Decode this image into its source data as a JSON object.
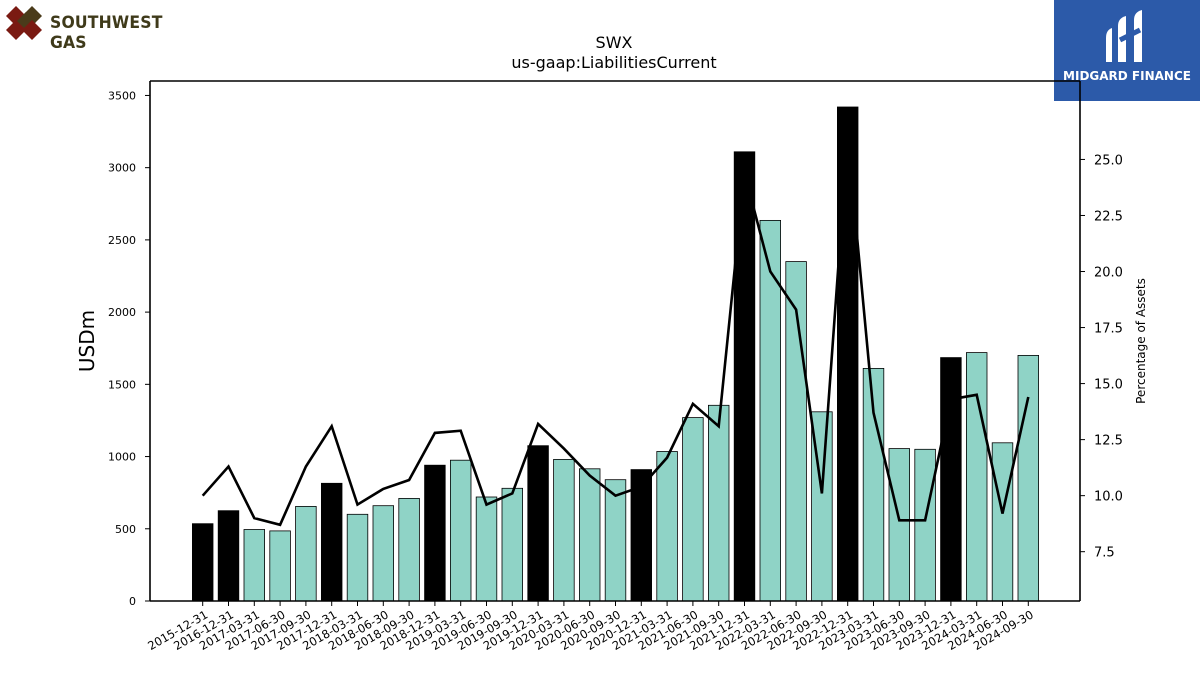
{
  "header": {
    "left_logo_text": "SOUTHWEST GAS",
    "right_logo_text": "MIDGARD FINANCE"
  },
  "chart_data": {
    "type": "bar",
    "title": "SWX",
    "subtitle": "us-gaap:LiabilitiesCurrent",
    "ylabel": "USDm",
    "y2label": "Percentage of Assets",
    "ylim": [
      0,
      3600
    ],
    "y2lim": [
      5.3,
      28.5
    ],
    "yticks": [
      0,
      500,
      1000,
      1500,
      2000,
      2500,
      3000,
      3500
    ],
    "y2ticks": [
      7.5,
      10.0,
      12.5,
      15.0,
      17.5,
      20.0,
      22.5,
      25.0
    ],
    "colors": {
      "annual_bar": "#000000",
      "quarter_bar": "#8fd3c6",
      "line": "#000000"
    },
    "categories": [
      "2015-12-31",
      "2016-12-31",
      "2017-03-31",
      "2017-06-30",
      "2017-09-30",
      "2017-12-31",
      "2018-03-31",
      "2018-06-30",
      "2018-09-30",
      "2018-12-31",
      "2019-03-31",
      "2019-06-30",
      "2019-09-30",
      "2019-12-31",
      "2020-03-31",
      "2020-06-30",
      "2020-09-30",
      "2020-12-31",
      "2021-03-31",
      "2021-06-30",
      "2021-09-30",
      "2021-12-31",
      "2022-03-31",
      "2022-06-30",
      "2022-09-30",
      "2022-12-31",
      "2023-03-31",
      "2023-06-30",
      "2023-09-30",
      "2023-12-31",
      "2024-03-31",
      "2024-06-30",
      "2024-09-30"
    ],
    "series": [
      {
        "kind": "bar",
        "values": [
          535,
          625,
          495,
          485,
          655,
          815,
          600,
          660,
          710,
          940,
          975,
          720,
          780,
          1075,
          980,
          915,
          840,
          910,
          1035,
          1270,
          1355,
          3110,
          2635,
          2350,
          1310,
          3420,
          1610,
          1055,
          1050,
          1685,
          1720,
          1095,
          1700
        ],
        "annual": [
          true,
          true,
          false,
          false,
          false,
          true,
          false,
          false,
          false,
          true,
          false,
          false,
          false,
          true,
          false,
          false,
          false,
          true,
          false,
          false,
          false,
          true,
          false,
          false,
          false,
          true,
          false,
          false,
          false,
          true,
          false,
          false,
          false
        ]
      },
      {
        "kind": "line",
        "axis": "right",
        "values": [
          10.0,
          11.3,
          9.0,
          8.7,
          11.3,
          13.1,
          9.6,
          10.3,
          10.7,
          12.8,
          12.9,
          9.6,
          10.1,
          13.2,
          12.1,
          10.9,
          10.0,
          10.4,
          11.7,
          14.1,
          13.1,
          24.4,
          20.0,
          18.3,
          10.1,
          26.0,
          13.7,
          8.9,
          8.9,
          14.3,
          14.5,
          9.2,
          14.4
        ]
      }
    ],
    "grid": false,
    "legend": "none"
  }
}
